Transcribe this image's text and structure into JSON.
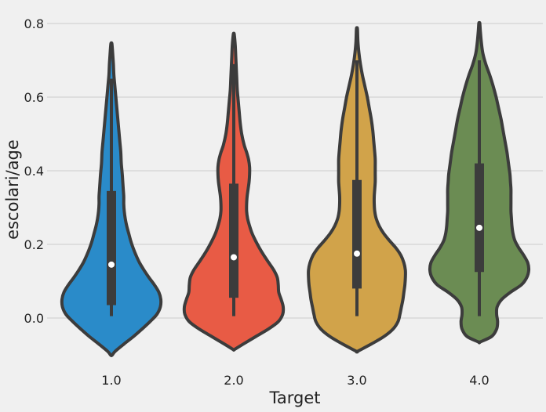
{
  "chart_data": {
    "type": "violin",
    "xlabel": "Target",
    "ylabel": "escolari/age",
    "ylim": [
      -0.1,
      0.82
    ],
    "yticks": [
      0.0,
      0.2,
      0.4,
      0.6,
      0.8
    ],
    "ytick_labels": [
      "0.0",
      "0.2",
      "0.4",
      "0.6",
      "0.8"
    ],
    "grid": "horizontal",
    "categories": [
      "1.0",
      "2.0",
      "3.0",
      "4.0"
    ],
    "colors": [
      "#2a8bc9",
      "#e85b45",
      "#d1a34a",
      "#6b8c53"
    ],
    "series": [
      {
        "category": "1.0",
        "median": 0.145,
        "q1": 0.035,
        "q3": 0.345,
        "whisker_low": 0.005,
        "whisker_high": 0.65,
        "density": [
          [
            -0.1,
            0.02
          ],
          [
            -0.09,
            0.08
          ],
          [
            -0.07,
            0.26
          ],
          [
            -0.05,
            0.45
          ],
          [
            -0.03,
            0.62
          ],
          [
            -0.01,
            0.78
          ],
          [
            0.01,
            0.92
          ],
          [
            0.03,
            0.99
          ],
          [
            0.05,
            1.0
          ],
          [
            0.07,
            0.96
          ],
          [
            0.09,
            0.87
          ],
          [
            0.11,
            0.76
          ],
          [
            0.13,
            0.66
          ],
          [
            0.15,
            0.57
          ],
          [
            0.17,
            0.5
          ],
          [
            0.19,
            0.44
          ],
          [
            0.21,
            0.39
          ],
          [
            0.23,
            0.35
          ],
          [
            0.25,
            0.31
          ],
          [
            0.27,
            0.28
          ],
          [
            0.29,
            0.26
          ],
          [
            0.31,
            0.25
          ],
          [
            0.33,
            0.25
          ],
          [
            0.35,
            0.24
          ],
          [
            0.37,
            0.23
          ],
          [
            0.39,
            0.22
          ],
          [
            0.42,
            0.2
          ],
          [
            0.45,
            0.19
          ],
          [
            0.48,
            0.17
          ],
          [
            0.51,
            0.15
          ],
          [
            0.54,
            0.13
          ],
          [
            0.57,
            0.11
          ],
          [
            0.6,
            0.09
          ],
          [
            0.63,
            0.07
          ],
          [
            0.66,
            0.05
          ],
          [
            0.69,
            0.04
          ],
          [
            0.71,
            0.03
          ],
          [
            0.73,
            0.02
          ],
          [
            0.745,
            0.01
          ]
        ]
      },
      {
        "category": "2.0",
        "median": 0.165,
        "q1": 0.055,
        "q3": 0.365,
        "whisker_low": 0.005,
        "whisker_high": 0.69,
        "density": [
          [
            -0.085,
            0.02
          ],
          [
            -0.07,
            0.2
          ],
          [
            -0.05,
            0.45
          ],
          [
            -0.03,
            0.7
          ],
          [
            -0.01,
            0.9
          ],
          [
            0.01,
            0.99
          ],
          [
            0.03,
            1.0
          ],
          [
            0.05,
            0.96
          ],
          [
            0.07,
            0.91
          ],
          [
            0.09,
            0.9
          ],
          [
            0.11,
            0.88
          ],
          [
            0.13,
            0.81
          ],
          [
            0.15,
            0.71
          ],
          [
            0.17,
            0.61
          ],
          [
            0.19,
            0.52
          ],
          [
            0.21,
            0.44
          ],
          [
            0.23,
            0.37
          ],
          [
            0.25,
            0.32
          ],
          [
            0.27,
            0.28
          ],
          [
            0.29,
            0.26
          ],
          [
            0.31,
            0.26
          ],
          [
            0.33,
            0.27
          ],
          [
            0.35,
            0.29
          ],
          [
            0.37,
            0.31
          ],
          [
            0.39,
            0.32
          ],
          [
            0.41,
            0.32
          ],
          [
            0.43,
            0.3
          ],
          [
            0.45,
            0.26
          ],
          [
            0.47,
            0.21
          ],
          [
            0.5,
            0.16
          ],
          [
            0.53,
            0.13
          ],
          [
            0.56,
            0.11
          ],
          [
            0.59,
            0.09
          ],
          [
            0.62,
            0.07
          ],
          [
            0.65,
            0.06
          ],
          [
            0.68,
            0.05
          ],
          [
            0.71,
            0.04
          ],
          [
            0.74,
            0.03
          ],
          [
            0.77,
            0.01
          ]
        ]
      },
      {
        "category": "3.0",
        "median": 0.175,
        "q1": 0.08,
        "q3": 0.375,
        "whisker_low": 0.005,
        "whisker_high": 0.7,
        "density": [
          [
            -0.09,
            0.02
          ],
          [
            -0.07,
            0.3
          ],
          [
            -0.05,
            0.55
          ],
          [
            -0.03,
            0.73
          ],
          [
            -0.01,
            0.83
          ],
          [
            0.01,
            0.87
          ],
          [
            0.03,
            0.9
          ],
          [
            0.05,
            0.93
          ],
          [
            0.07,
            0.95
          ],
          [
            0.09,
            0.97
          ],
          [
            0.11,
            0.98
          ],
          [
            0.13,
            0.98
          ],
          [
            0.15,
            0.95
          ],
          [
            0.17,
            0.89
          ],
          [
            0.19,
            0.79
          ],
          [
            0.21,
            0.66
          ],
          [
            0.23,
            0.54
          ],
          [
            0.25,
            0.45
          ],
          [
            0.27,
            0.39
          ],
          [
            0.29,
            0.36
          ],
          [
            0.31,
            0.35
          ],
          [
            0.33,
            0.35
          ],
          [
            0.35,
            0.36
          ],
          [
            0.37,
            0.37
          ],
          [
            0.39,
            0.37
          ],
          [
            0.41,
            0.37
          ],
          [
            0.43,
            0.37
          ],
          [
            0.45,
            0.36
          ],
          [
            0.48,
            0.34
          ],
          [
            0.51,
            0.32
          ],
          [
            0.54,
            0.29
          ],
          [
            0.57,
            0.25
          ],
          [
            0.6,
            0.21
          ],
          [
            0.63,
            0.16
          ],
          [
            0.66,
            0.11
          ],
          [
            0.69,
            0.07
          ],
          [
            0.72,
            0.04
          ],
          [
            0.75,
            0.02
          ],
          [
            0.785,
            0.01
          ]
        ]
      },
      {
        "category": "4.0",
        "median": 0.245,
        "q1": 0.125,
        "q3": 0.42,
        "whisker_low": 0.005,
        "whisker_high": 0.7,
        "density": [
          [
            -0.065,
            0.02
          ],
          [
            -0.05,
            0.25
          ],
          [
            -0.03,
            0.35
          ],
          [
            -0.01,
            0.37
          ],
          [
            0.01,
            0.35
          ],
          [
            0.03,
            0.36
          ],
          [
            0.05,
            0.45
          ],
          [
            0.07,
            0.63
          ],
          [
            0.09,
            0.85
          ],
          [
            0.11,
            0.96
          ],
          [
            0.13,
            1.0
          ],
          [
            0.15,
            0.98
          ],
          [
            0.17,
            0.9
          ],
          [
            0.19,
            0.8
          ],
          [
            0.21,
            0.72
          ],
          [
            0.23,
            0.68
          ],
          [
            0.25,
            0.66
          ],
          [
            0.27,
            0.65
          ],
          [
            0.29,
            0.64
          ],
          [
            0.31,
            0.64
          ],
          [
            0.33,
            0.64
          ],
          [
            0.35,
            0.64
          ],
          [
            0.37,
            0.63
          ],
          [
            0.39,
            0.62
          ],
          [
            0.41,
            0.6
          ],
          [
            0.43,
            0.58
          ],
          [
            0.45,
            0.56
          ],
          [
            0.48,
            0.52
          ],
          [
            0.51,
            0.48
          ],
          [
            0.54,
            0.44
          ],
          [
            0.57,
            0.39
          ],
          [
            0.6,
            0.34
          ],
          [
            0.63,
            0.28
          ],
          [
            0.66,
            0.21
          ],
          [
            0.69,
            0.13
          ],
          [
            0.72,
            0.07
          ],
          [
            0.75,
            0.04
          ],
          [
            0.78,
            0.02
          ],
          [
            0.8,
            0.01
          ]
        ]
      }
    ]
  }
}
